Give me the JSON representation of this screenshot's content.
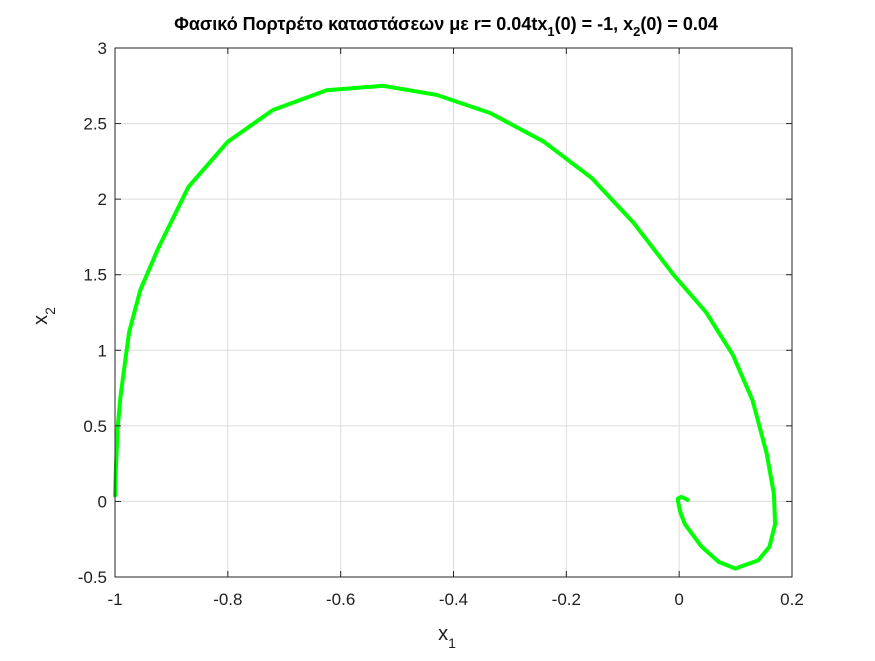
{
  "chart_data": {
    "type": "line",
    "title_parts": {
      "main": "Φασικό Πορτρέτο καταστάσεων με r= 0.04tx",
      "sub1": "1",
      "mid": "(0) = -1, x",
      "sub2": "2",
      "end": "(0) = 0.04"
    },
    "xlabel": {
      "base": "x",
      "sub": "1"
    },
    "ylabel": {
      "base": "x",
      "sub": "2"
    },
    "xlim": [
      -1,
      0.2
    ],
    "ylim": [
      -0.5,
      3
    ],
    "xticks": [
      -1,
      -0.8,
      -0.6,
      -0.4,
      -0.2,
      0,
      0.2
    ],
    "xtick_labels": [
      "-1",
      "-0.8",
      "-0.6",
      "-0.4",
      "-0.2",
      "0",
      "0.2"
    ],
    "yticks": [
      -0.5,
      0,
      0.5,
      1,
      1.5,
      2,
      2.5,
      3
    ],
    "ytick_labels": [
      "-0.5",
      "0",
      "0.5",
      "1",
      "1.5",
      "2",
      "2.5",
      "3"
    ],
    "grid": true,
    "series": [
      {
        "color": "#00ff00",
        "x": [
          -1.0,
          -0.998,
          -0.995,
          -0.99,
          -0.983,
          -0.975,
          -0.955,
          -0.924,
          -0.87,
          -0.8,
          -0.72,
          -0.625,
          -0.525,
          -0.43,
          -0.335,
          -0.24,
          -0.155,
          -0.08,
          -0.01,
          0.048,
          0.095,
          0.13,
          0.155,
          0.168,
          0.17,
          0.16,
          0.14,
          0.11,
          0.1,
          0.07,
          0.04,
          0.01,
          0.002,
          -0.002,
          -0.002,
          0.004,
          0.01,
          0.015
        ],
        "y": [
          0.04,
          0.25,
          0.5,
          0.7,
          0.9,
          1.12,
          1.4,
          1.67,
          2.08,
          2.38,
          2.59,
          2.72,
          2.75,
          2.69,
          2.57,
          2.38,
          2.14,
          1.84,
          1.5,
          1.25,
          0.97,
          0.67,
          0.32,
          0.05,
          -0.15,
          -0.3,
          -0.39,
          -0.43,
          -0.445,
          -0.4,
          -0.3,
          -0.15,
          -0.07,
          0.0,
          0.02,
          0.03,
          0.02,
          0.01
        ]
      }
    ]
  }
}
